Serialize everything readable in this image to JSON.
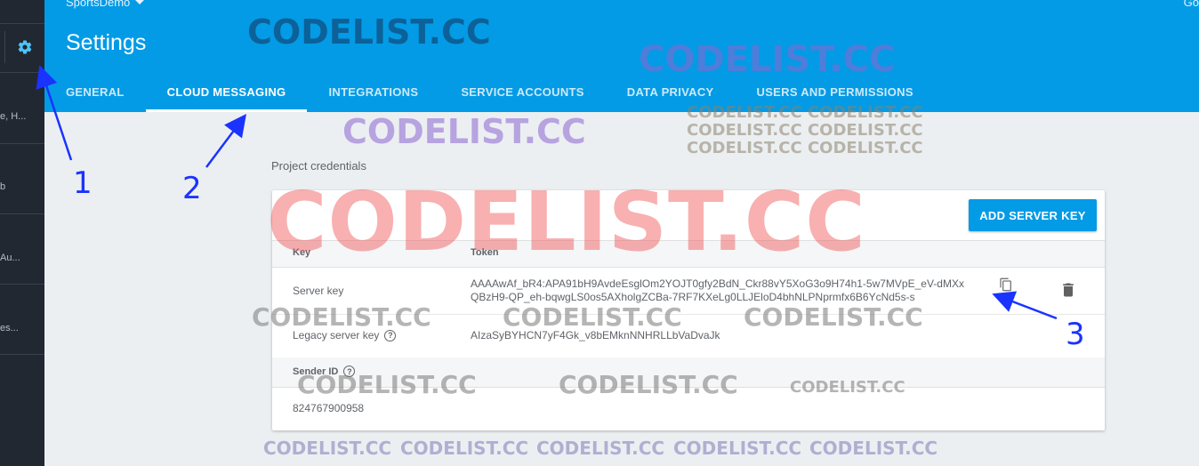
{
  "project_name": "SportsDemo",
  "header_link": "Go",
  "page_title": "Settings",
  "tabs": [
    {
      "label": "GENERAL",
      "active": false
    },
    {
      "label": "CLOUD MESSAGING",
      "active": true
    },
    {
      "label": "INTEGRATIONS",
      "active": false
    },
    {
      "label": "SERVICE ACCOUNTS",
      "active": false
    },
    {
      "label": "DATA PRIVACY",
      "active": false
    },
    {
      "label": "USERS AND PERMISSIONS",
      "active": false
    }
  ],
  "sidebar": {
    "truncated_items": [
      "e, H...",
      "b",
      "Au...",
      "es..."
    ]
  },
  "section_label": "Project credentials",
  "add_server_key_label": "ADD SERVER KEY",
  "table": {
    "col_key": "Key",
    "col_token": "Token",
    "server_key_label": "Server key",
    "server_key_token_line1": "AAAAwAf_bR4:APA91bH9AvdeEsglOm2YOJT0gfy2BdN_Ckr88vY5XoG3o9H74h1-5w7MVpE_eV-dMXx",
    "server_key_token_line2": "QBzH9-QP_eh-bqwgLS0os5AXholgZCBa-7RF7KXeLg0LLJEloD4bhNLPNprmfx6B6YcNd5s-s",
    "legacy_key_label": "Legacy server key",
    "legacy_key_token": "AIzaSyBYHCN7yF4Gk_v8bEMknNNHRLLbVaDvaJk",
    "sender_id_label": "Sender ID",
    "sender_id_value": "824767900958"
  },
  "annotations": {
    "one": "1",
    "two": "2",
    "three": "3"
  },
  "watermarks": {
    "text": "CODELIST.CC",
    "double": "CODELIST.CC CODELIST.CC"
  },
  "colors": {
    "header_blue": "#039be5",
    "rail_dark": "#212832",
    "annotation_blue": "#1a33ff"
  }
}
